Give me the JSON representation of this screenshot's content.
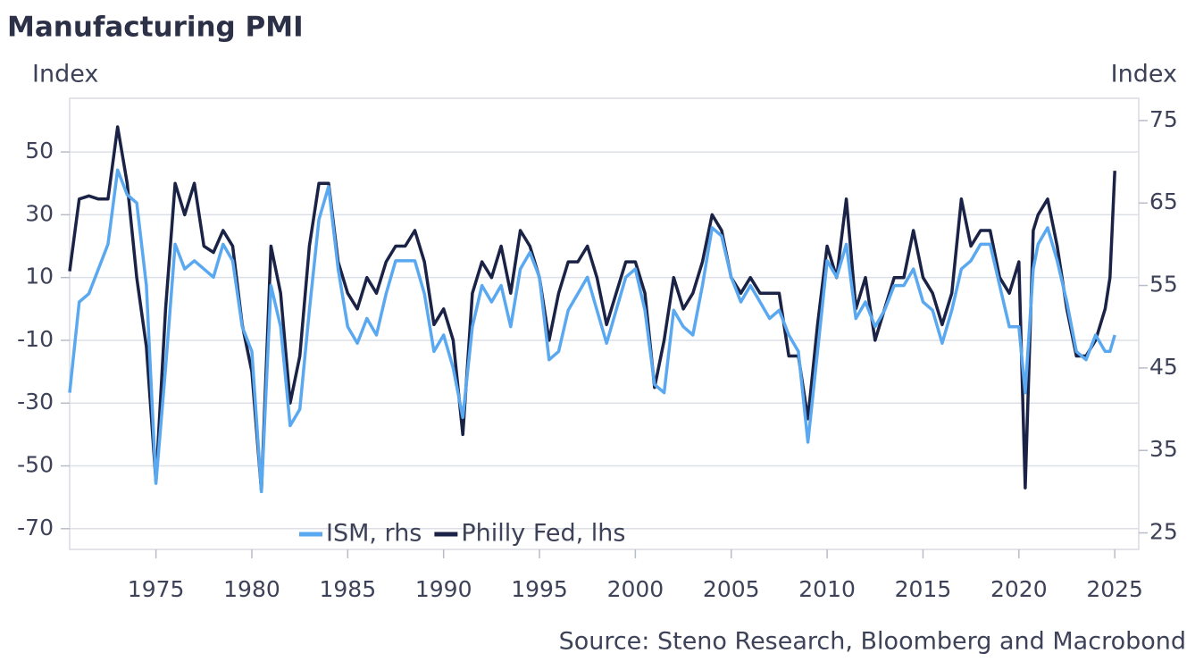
{
  "chart_data": {
    "type": "line",
    "title": "Manufacturing PMI",
    "ylabel": "Index",
    "y2label": "Index",
    "source": "Source: Steno Research, Bloomberg and Macrobond",
    "legend": "bottom",
    "grid": true,
    "xlim": [
      1970.5,
      2026.25
    ],
    "xticks": [
      1975,
      1980,
      1985,
      1990,
      1995,
      2000,
      2005,
      2010,
      2015,
      2020,
      2025
    ],
    "ylim": [
      -76.6,
      67.1
    ],
    "yticks": [
      -70,
      -50,
      -30,
      -10,
      10,
      30,
      50
    ],
    "y2lim": [
      23,
      77.7
    ],
    "y2ticks": [
      25,
      35,
      45,
      55,
      65,
      75
    ],
    "x": [
      1970.5,
      1971,
      1971.5,
      1972,
      1972.5,
      1973,
      1973.5,
      1974,
      1974.5,
      1975,
      1975.5,
      1976,
      1976.5,
      1977,
      1977.5,
      1978,
      1978.5,
      1979,
      1979.5,
      1980,
      1980.5,
      1981,
      1981.5,
      1982,
      1982.5,
      1983,
      1983.5,
      1984,
      1984.5,
      1985,
      1985.5,
      1986,
      1986.5,
      1987,
      1987.5,
      1988,
      1988.5,
      1989,
      1989.5,
      1990,
      1990.5,
      1991,
      1991.5,
      1992,
      1992.5,
      1993,
      1993.5,
      1994,
      1994.5,
      1995,
      1995.5,
      1996,
      1996.5,
      1997,
      1997.5,
      1998,
      1998.5,
      1999,
      1999.5,
      2000,
      2000.5,
      2001,
      2001.5,
      2002,
      2002.5,
      2003,
      2003.5,
      2004,
      2004.5,
      2005,
      2005.5,
      2006,
      2006.5,
      2007,
      2007.5,
      2008,
      2008.5,
      2009,
      2009.5,
      2010,
      2010.5,
      2011,
      2011.5,
      2012,
      2012.5,
      2013,
      2013.5,
      2014,
      2014.5,
      2015,
      2015.5,
      2016,
      2016.5,
      2017,
      2017.5,
      2018,
      2018.5,
      2019,
      2019.5,
      2020,
      2020.33,
      2020.75,
      2021,
      2021.5,
      2022,
      2022.5,
      2023,
      2023.5,
      2024,
      2024.5,
      2024.75,
      2025
    ],
    "series": [
      {
        "name": "ISM, rhs",
        "color": "#5aa8f0",
        "axis": "y2",
        "values": [
          42,
          53,
          54,
          57,
          60,
          69,
          66,
          65,
          55,
          31,
          45,
          60,
          57,
          58,
          57,
          56,
          60,
          58,
          50,
          47,
          30,
          55,
          50,
          38,
          40,
          52,
          63,
          67,
          57,
          50,
          48,
          51,
          49,
          54,
          58,
          58,
          58,
          54,
          47,
          49,
          45,
          39,
          50,
          55,
          53,
          55,
          50,
          57,
          59,
          56,
          46,
          47,
          52,
          54,
          56,
          52,
          48,
          52,
          56,
          57,
          52,
          43,
          42,
          52,
          50,
          49,
          55,
          62,
          61,
          56,
          53,
          55,
          53,
          51,
          52,
          49,
          47,
          36,
          47,
          58,
          56,
          60,
          51,
          53,
          50,
          52,
          55,
          55,
          57,
          53,
          52,
          48,
          52,
          57,
          58,
          60,
          60,
          55,
          50,
          50,
          42,
          57,
          60,
          62,
          58,
          53,
          47,
          46,
          49,
          47,
          47,
          49
        ]
      },
      {
        "name": "Philly Fed, lhs",
        "color": "#1a2246",
        "values": [
          12,
          35,
          36,
          35,
          35,
          58,
          40,
          10,
          -12,
          -55,
          0,
          40,
          30,
          40,
          20,
          18,
          25,
          20,
          -5,
          -20,
          -58,
          20,
          5,
          -30,
          -15,
          20,
          40,
          40,
          15,
          5,
          0,
          10,
          5,
          15,
          20,
          20,
          25,
          15,
          -5,
          0,
          -10,
          -40,
          5,
          15,
          10,
          20,
          5,
          25,
          20,
          10,
          -10,
          5,
          15,
          15,
          20,
          10,
          -5,
          5,
          15,
          15,
          5,
          -25,
          -10,
          10,
          0,
          5,
          15,
          30,
          25,
          10,
          5,
          10,
          5,
          5,
          5,
          -15,
          -15,
          -35,
          -5,
          20,
          10,
          35,
          0,
          10,
          -10,
          0,
          10,
          10,
          25,
          10,
          5,
          -5,
          5,
          35,
          20,
          25,
          25,
          10,
          5,
          15,
          -57,
          25,
          30,
          35,
          20,
          0,
          -15,
          -15,
          -10,
          0,
          10,
          44
        ]
      }
    ]
  }
}
